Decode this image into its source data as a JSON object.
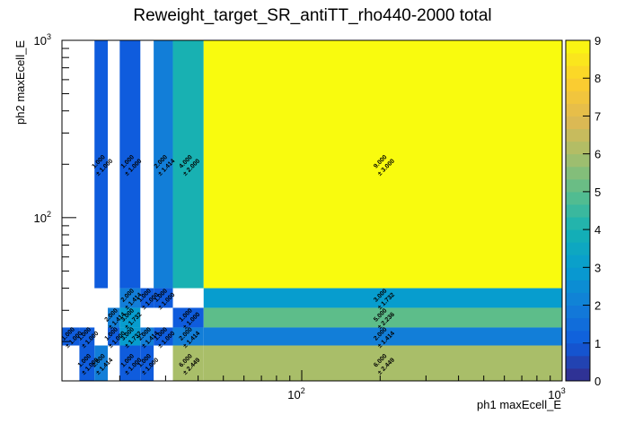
{
  "chart_data": {
    "type": "heatmap",
    "title": "Reweight_target_SR_antiTT_rho440-2000 total",
    "xlabel": "ph1 maxEcell_E",
    "ylabel": "ph2 maxEcell_E",
    "x_scale": "log",
    "y_scale": "log",
    "xlim": [
      12,
      1000
    ],
    "ylim": [
      12,
      1000
    ],
    "zlim": [
      0,
      9
    ],
    "x_ticks": [
      {
        "value": 100,
        "base": "10",
        "exp": "2"
      },
      {
        "value": 1000,
        "base": "10",
        "exp": "3"
      }
    ],
    "y_ticks": [
      {
        "value": 100,
        "base": "10",
        "exp": "2"
      },
      {
        "value": 1000,
        "base": "10",
        "exp": "3"
      }
    ],
    "z_ticks": [
      "0",
      "1",
      "2",
      "3",
      "4",
      "5",
      "6",
      "7",
      "8",
      "9"
    ],
    "cells": [
      {
        "x": [
          16,
          18
        ],
        "y": [
          40,
          1000
        ],
        "z": 1,
        "label": "1.000",
        "err": "± 1.000"
      },
      {
        "x": [
          20,
          24
        ],
        "y": [
          40,
          1000
        ],
        "z": 1,
        "label": "1.000",
        "err": "± 1.000"
      },
      {
        "x": [
          27,
          32
        ],
        "y": [
          40,
          1000
        ],
        "z": 2,
        "label": "2.000",
        "err": "± 1.414"
      },
      {
        "x": [
          32,
          42
        ],
        "y": [
          40,
          1000
        ],
        "z": 4,
        "label": "4.000",
        "err": "± 2.000"
      },
      {
        "x": [
          42,
          1000
        ],
        "y": [
          40,
          1000
        ],
        "z": 9,
        "label": "9.000",
        "err": "± 3.000"
      },
      {
        "x": [
          20,
          24
        ],
        "y": [
          31,
          40
        ],
        "z": 2,
        "label": "2.000",
        "err": "± 1.414"
      },
      {
        "x": [
          24,
          27
        ],
        "y": [
          31,
          40
        ],
        "z": 1,
        "label": "1.000",
        "err": "± 1.000"
      },
      {
        "x": [
          27,
          32
        ],
        "y": [
          31,
          40
        ],
        "z": 1,
        "label": "1.000",
        "err": "± 1.000"
      },
      {
        "x": [
          42,
          1000
        ],
        "y": [
          31,
          40
        ],
        "z": 3,
        "label": "3.000",
        "err": "± 1.732"
      },
      {
        "x": [
          18,
          20
        ],
        "y": [
          24,
          31
        ],
        "z": 2,
        "label": "2.000",
        "err": "± 1.414"
      },
      {
        "x": [
          20,
          24
        ],
        "y": [
          24,
          31
        ],
        "z": 3,
        "label": "3.000",
        "err": "± 1.732"
      },
      {
        "x": [
          32,
          42
        ],
        "y": [
          24,
          31
        ],
        "z": 1,
        "label": "1.000",
        "err": "± 1.000"
      },
      {
        "x": [
          42,
          1000
        ],
        "y": [
          24,
          31
        ],
        "z": 5,
        "label": "5.000",
        "err": "± 2.236"
      },
      {
        "x": [
          12,
          14
        ],
        "y": [
          19,
          24
        ],
        "z": 1,
        "label": "1.000",
        "err": "± 1.000"
      },
      {
        "x": [
          14,
          16
        ],
        "y": [
          19,
          24
        ],
        "z": 1,
        "label": "1.000",
        "err": "± 1.000"
      },
      {
        "x": [
          18,
          20
        ],
        "y": [
          19,
          24
        ],
        "z": 1,
        "label": "1.000",
        "err": "± 1.000"
      },
      {
        "x": [
          20,
          24
        ],
        "y": [
          19,
          24
        ],
        "z": 3,
        "label": "3.000",
        "err": "± 1.732"
      },
      {
        "x": [
          24,
          27
        ],
        "y": [
          19,
          24
        ],
        "z": 2,
        "label": "2.000",
        "err": "± 1.414"
      },
      {
        "x": [
          27,
          32
        ],
        "y": [
          19,
          24
        ],
        "z": 1,
        "label": "1.000",
        "err": "± 1.000"
      },
      {
        "x": [
          32,
          42
        ],
        "y": [
          19,
          24
        ],
        "z": 2,
        "label": "2.000",
        "err": "± 1.414"
      },
      {
        "x": [
          42,
          1000
        ],
        "y": [
          19,
          24
        ],
        "z": 2,
        "label": "2.000",
        "err": "± 1.414"
      },
      {
        "x": [
          14,
          16
        ],
        "y": [
          12,
          19
        ],
        "z": 1,
        "label": "1.000",
        "err": "± 1.000"
      },
      {
        "x": [
          16,
          18
        ],
        "y": [
          12,
          19
        ],
        "z": 2,
        "label": "2.000",
        "err": "± 1.414"
      },
      {
        "x": [
          20,
          24
        ],
        "y": [
          12,
          19
        ],
        "z": 1,
        "label": "1.000",
        "err": "± 1.000"
      },
      {
        "x": [
          24,
          27
        ],
        "y": [
          12,
          19
        ],
        "z": 1,
        "label": "1.000",
        "err": "± 1.000"
      },
      {
        "x": [
          32,
          42
        ],
        "y": [
          12,
          19
        ],
        "z": 6,
        "label": "6.000",
        "err": "± 2.449"
      },
      {
        "x": [
          42,
          1000
        ],
        "y": [
          12,
          19
        ],
        "z": 6,
        "label": "6.000",
        "err": "± 2.449"
      }
    ]
  }
}
